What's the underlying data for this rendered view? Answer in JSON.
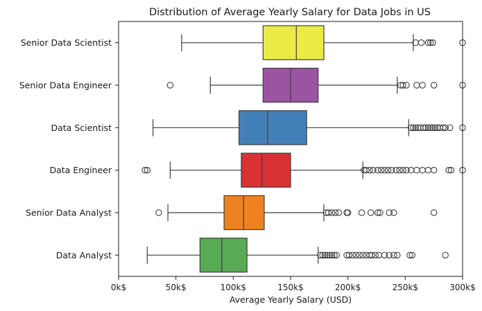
{
  "chart_data": {
    "type": "boxplot",
    "orientation": "horizontal",
    "title": "Distribution of Average Yearly Salary for Data Jobs in US",
    "xlabel": "Average Yearly Salary (USD)",
    "ylabel": "",
    "xlim": [
      0,
      300000
    ],
    "x_ticks": [
      0,
      50000,
      100000,
      150000,
      200000,
      250000,
      300000
    ],
    "x_tick_labels": [
      "0k$",
      "50k$",
      "100k$",
      "150k$",
      "200k$",
      "250k$",
      "300k$"
    ],
    "grid": false,
    "legend": "none",
    "categories": [
      "Senior Data Scientist",
      "Senior Data Engineer",
      "Data Scientist",
      "Data Engineer",
      "Senior Data Analyst",
      "Data Analyst"
    ],
    "series": [
      {
        "category": "Senior Data Scientist",
        "color": "#ebeb45",
        "whisker_low": 55000,
        "q1": 126000,
        "median": 155000,
        "q3": 179000,
        "whisker_high": 257000,
        "outliers": [
          259000,
          264000,
          270000,
          272000,
          274000,
          300000
        ]
      },
      {
        "category": "Senior Data Engineer",
        "color": "#9a54a1",
        "whisker_low": 80000,
        "q1": 126000,
        "median": 150000,
        "q3": 174000,
        "whisker_high": 243000,
        "outliers": [
          45000,
          246000,
          248000,
          251000,
          260000,
          265000,
          275000,
          300000
        ]
      },
      {
        "category": "Data Scientist",
        "color": "#4380b8",
        "whisker_low": 30000,
        "q1": 105000,
        "median": 130000,
        "q3": 164000,
        "whisker_high": 253000,
        "outliers": [
          255000,
          257000,
          259000,
          261000,
          263000,
          266000,
          268000,
          270000,
          272000,
          274000,
          276000,
          278000,
          280000,
          283000,
          285000,
          289000,
          300000
        ]
      },
      {
        "category": "Data Engineer",
        "color": "#d93134",
        "whisker_low": 45000,
        "q1": 107000,
        "median": 125000,
        "q3": 150000,
        "whisker_high": 213000,
        "outliers": [
          23000,
          25000,
          214000,
          216000,
          219000,
          222000,
          226000,
          229000,
          232000,
          235000,
          238000,
          242000,
          245000,
          248000,
          251000,
          255000,
          260000,
          265000,
          270000,
          275000,
          288000,
          290000,
          300000
        ]
      },
      {
        "category": "Senior Data Analyst",
        "color": "#ee8223",
        "whisker_low": 43000,
        "q1": 92000,
        "median": 109000,
        "q3": 127000,
        "whisker_high": 179000,
        "outliers": [
          35000,
          181000,
          183000,
          186000,
          189000,
          192000,
          199000,
          200000,
          212000,
          220000,
          226000,
          228000,
          236000,
          240000,
          275000
        ]
      },
      {
        "category": "Data Analyst",
        "color": "#58aa54",
        "whisker_low": 25000,
        "q1": 71000,
        "median": 90000,
        "q3": 112000,
        "whisker_high": 174000,
        "outliers": [
          176000,
          178000,
          180000,
          182000,
          184000,
          186000,
          188000,
          190000,
          199000,
          201000,
          204000,
          207000,
          210000,
          213000,
          216000,
          219000,
          221000,
          224000,
          227000,
          232000,
          236000,
          240000,
          243000,
          254000,
          256000,
          285000
        ]
      }
    ]
  }
}
